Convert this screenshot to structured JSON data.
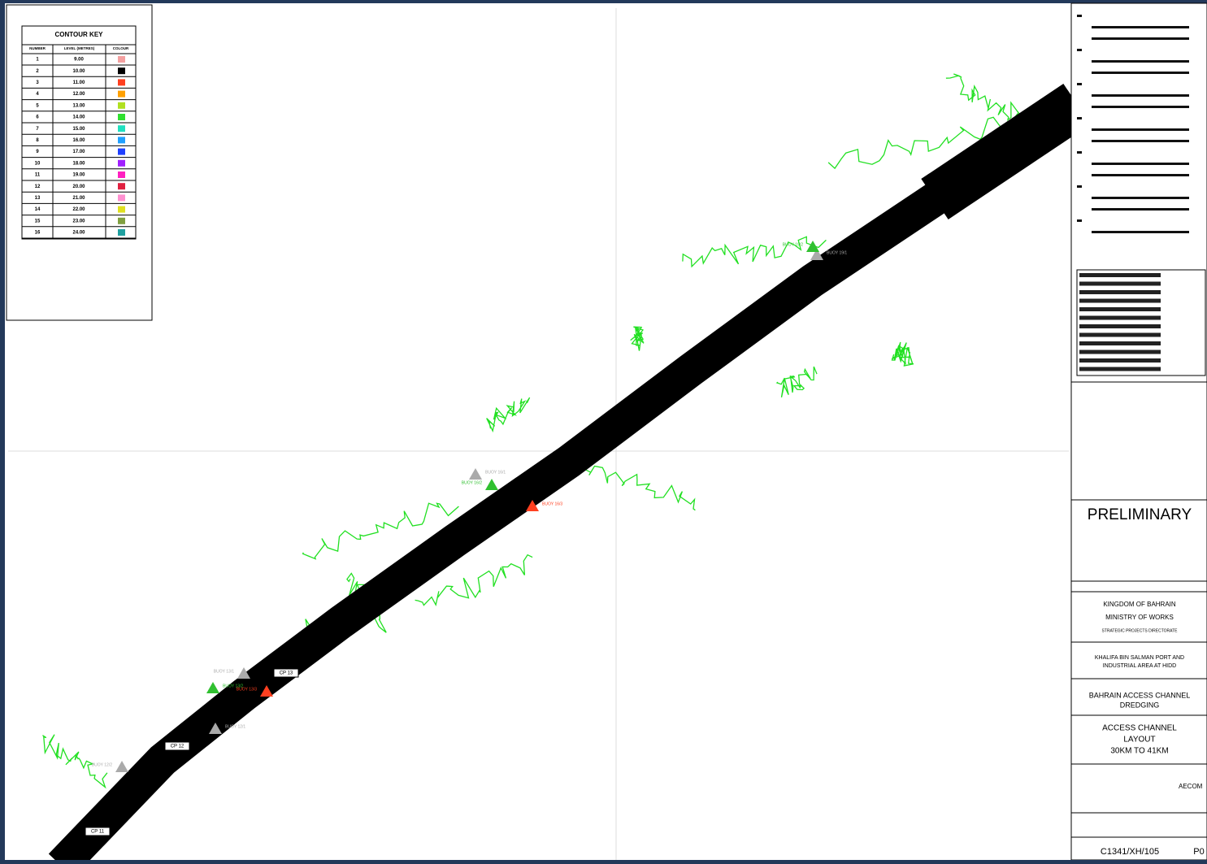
{
  "contour_key": {
    "title": "CONTOUR KEY",
    "headers": [
      "NUMBER",
      "LEVEL (METRES)",
      "COLOUR"
    ],
    "rows": [
      [
        "1",
        "9.00"
      ],
      [
        "2",
        "10.00"
      ],
      [
        "3",
        "11.00"
      ],
      [
        "4",
        "12.00"
      ],
      [
        "5",
        "13.00"
      ],
      [
        "6",
        "14.00"
      ],
      [
        "7",
        "15.00"
      ],
      [
        "8",
        "16.00"
      ],
      [
        "9",
        "17.00"
      ],
      [
        "10",
        "18.00"
      ],
      [
        "11",
        "19.00"
      ],
      [
        "12",
        "20.00"
      ],
      [
        "13",
        "21.00"
      ],
      [
        "14",
        "22.00"
      ],
      [
        "15",
        "23.00"
      ],
      [
        "16",
        "24.00"
      ]
    ],
    "colors": [
      "#f4a0a0",
      "#000000",
      "#ff4020",
      "#ffa000",
      "#b0e020",
      "#30e030",
      "#20e0c0",
      "#20a0ff",
      "#2040ff",
      "#a020ff",
      "#ff20c0",
      "#e02040",
      "#ff90d0",
      "#e0e020",
      "#80a040",
      "#20a0a0"
    ]
  },
  "buoys": [
    {
      "label": "BUOY 19/1",
      "color": "#aaaaaa"
    },
    {
      "label": "BUOY 19/2",
      "color": "#30c030"
    },
    {
      "label": "BUOY 16/1",
      "color": "#aaaaaa"
    },
    {
      "label": "BUOY 16/2",
      "color": "#30c030"
    },
    {
      "label": "BUOY 16/3",
      "color": "#ff4020"
    },
    {
      "label": "BUOY 13/1",
      "color": "#aaaaaa"
    },
    {
      "label": "BUOY 13/2",
      "color": "#30c030"
    },
    {
      "label": "BUOY 13/3",
      "color": "#ff4020"
    },
    {
      "label": "BUOY 12/1",
      "color": "#aaaaaa"
    },
    {
      "label": "BUOY 12/2",
      "color": "#aaaaaa"
    }
  ],
  "markers": [
    "CP 13",
    "CP 12",
    "CP 11"
  ],
  "title_block": {
    "stamp": "PRELIMINARY",
    "client": [
      "KINGDOM OF BAHRAIN",
      "MINISTRY OF WORKS",
      "STRATEGIC PROJECTS DIRECTORATE"
    ],
    "project": [
      "KHALIFA BIN SALMAN PORT AND",
      "INDUSTRIAL AREA AT HIDD"
    ],
    "contract": [
      "BAHRAIN ACCESS CHANNEL",
      "DREDGING"
    ],
    "drawing_title": [
      "ACCESS CHANNEL",
      "LAYOUT",
      "30KM TO 41KM"
    ],
    "consultant": "AECOM",
    "drawing_number": "C1341/XH/105",
    "revision": "P0"
  }
}
